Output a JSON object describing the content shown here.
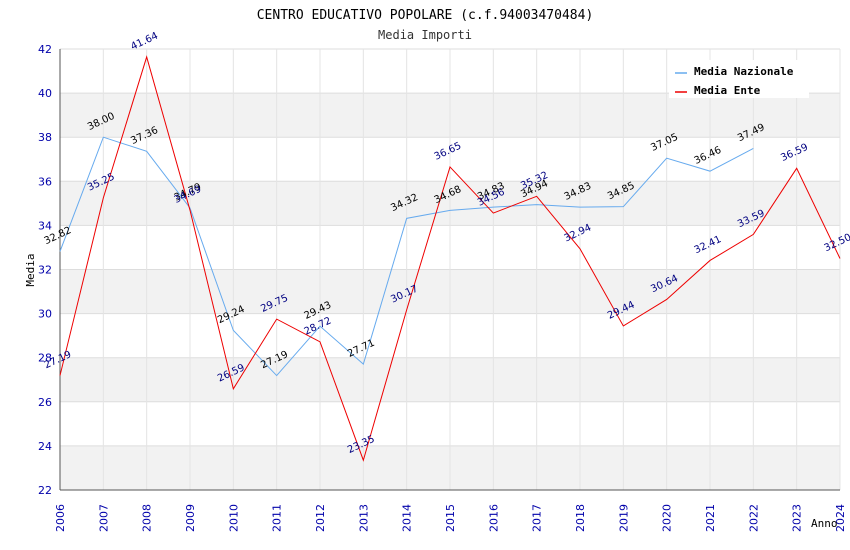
{
  "chart_data": {
    "type": "line",
    "title": "CENTRO EDUCATIVO POPOLARE (c.f.94003470484)",
    "subtitle": "Media Importi",
    "xlabel": "Anno",
    "ylabel": "Media",
    "ylim": [
      22,
      42
    ],
    "yticks": [
      22,
      24,
      26,
      28,
      30,
      32,
      34,
      36,
      38,
      40,
      42
    ],
    "categories": [
      "2006",
      "2007",
      "2008",
      "2009",
      "2010",
      "2011",
      "2012",
      "2013",
      "2014",
      "2015",
      "2016",
      "2017",
      "2018",
      "2019",
      "2020",
      "2021",
      "2022",
      "2023",
      "2024"
    ],
    "grid": true,
    "legend_position": "top-right",
    "series": [
      {
        "name": "Media Nazionale",
        "color": "#66aaee",
        "values": [
          32.82,
          38.0,
          37.36,
          34.79,
          29.24,
          27.19,
          29.43,
          27.71,
          34.32,
          34.68,
          34.83,
          34.94,
          34.83,
          34.85,
          37.05,
          36.46,
          37.49,
          null,
          null
        ],
        "labels": [
          "32.82",
          "38.00",
          "37.36",
          "34.79",
          "29.24",
          "27.19",
          "29.43",
          "27.71",
          "34.32",
          "34.68",
          "34.83",
          "34.94",
          "34.83",
          "34.85",
          "37.05",
          "36.46",
          "37.49",
          "",
          ""
        ]
      },
      {
        "name": "Media Ente",
        "color": "#ee0000",
        "values": [
          27.19,
          35.25,
          41.64,
          34.69,
          26.59,
          29.75,
          28.72,
          23.35,
          30.17,
          36.65,
          34.56,
          35.32,
          32.94,
          29.44,
          30.64,
          32.41,
          33.59,
          36.59,
          32.5
        ],
        "labels": [
          "27.19",
          "35.25",
          "41.64",
          "34.69",
          "26.59",
          "29.75",
          "28.72",
          "23.35",
          "30.17",
          "36.65",
          "34.56",
          "35.32",
          "32.94",
          "29.44",
          "30.64",
          "32.41",
          "33.59",
          "36.59",
          "32.50"
        ]
      }
    ]
  }
}
